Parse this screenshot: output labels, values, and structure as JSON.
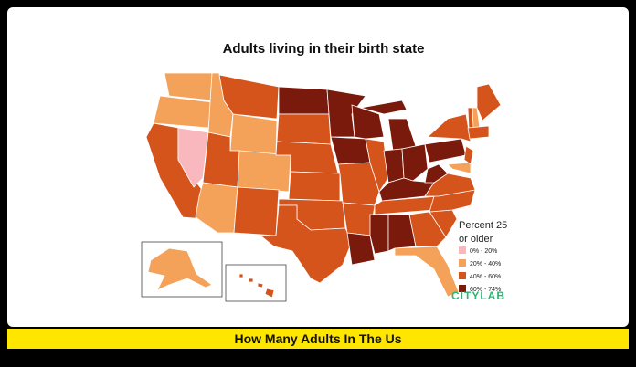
{
  "header": {
    "title": "Adults living in their birth state"
  },
  "legend": {
    "title_lines": [
      "Percent 25",
      "or older"
    ],
    "items": [
      {
        "label": "0% - 20%",
        "color": "#f8b8be"
      },
      {
        "label": "20% - 40%",
        "color": "#f4a25a"
      },
      {
        "label": "40% - 60%",
        "color": "#d4541c"
      },
      {
        "label": "60% - 74%",
        "color": "#7a1a0c"
      }
    ]
  },
  "brand": "CITYLAB",
  "caption": "How Many Adults In The Us"
}
